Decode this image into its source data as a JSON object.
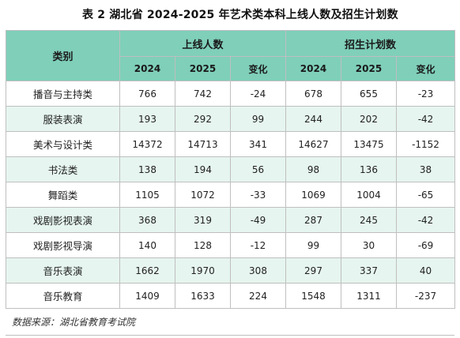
{
  "title": "表 2  湖北省 2024-2025 年艺术类本科上线人数及招生计划数",
  "header": {
    "category": "类别",
    "group1": "上线人数",
    "group2": "招生计划数",
    "y2024": "2024",
    "y2025": "2025",
    "change": "变化"
  },
  "rows": [
    {
      "category": "播音与主持类",
      "online2024": "766",
      "online2025": "742",
      "onlineChange": "-24",
      "plan2024": "678",
      "plan2025": "655",
      "planChange": "-23"
    },
    {
      "category": "服装表演",
      "online2024": "193",
      "online2025": "292",
      "onlineChange": "99",
      "plan2024": "244",
      "plan2025": "202",
      "planChange": "-42"
    },
    {
      "category": "美术与设计类",
      "online2024": "14372",
      "online2025": "14713",
      "onlineChange": "341",
      "plan2024": "14627",
      "plan2025": "13475",
      "planChange": "-1152"
    },
    {
      "category": "书法类",
      "online2024": "138",
      "online2025": "194",
      "onlineChange": "56",
      "plan2024": "98",
      "plan2025": "136",
      "planChange": "38"
    },
    {
      "category": "舞蹈类",
      "online2024": "1105",
      "online2025": "1072",
      "onlineChange": "-33",
      "plan2024": "1069",
      "plan2025": "1004",
      "planChange": "-65"
    },
    {
      "category": "戏剧影视表演",
      "online2024": "368",
      "online2025": "319",
      "onlineChange": "-49",
      "plan2024": "287",
      "plan2025": "245",
      "planChange": "-42"
    },
    {
      "category": "戏剧影视导演",
      "online2024": "140",
      "online2025": "128",
      "onlineChange": "-12",
      "plan2024": "99",
      "plan2025": "30",
      "planChange": "-69"
    },
    {
      "category": "音乐表演",
      "online2024": "1662",
      "online2025": "1970",
      "onlineChange": "308",
      "plan2024": "297",
      "plan2025": "337",
      "planChange": "40"
    },
    {
      "category": "音乐教育",
      "online2024": "1409",
      "online2025": "1633",
      "onlineChange": "224",
      "plan2024": "1548",
      "plan2025": "1311",
      "planChange": "-237"
    }
  ],
  "source": "数据来源：湖北省教育考试院",
  "colors": {
    "header": "#7fcfb9",
    "stripe": "#e6f5ef",
    "border": "#bfbfbf"
  }
}
